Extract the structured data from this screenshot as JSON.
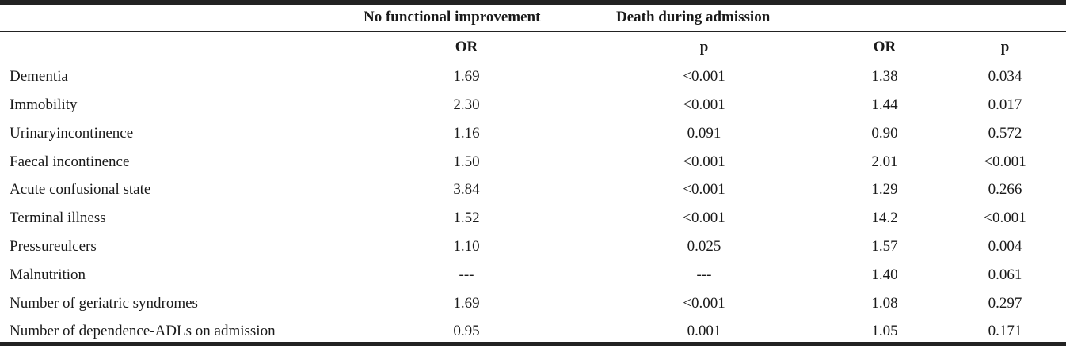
{
  "table": {
    "group_headers": [
      "No functional improvement",
      "Death during admission"
    ],
    "sub_headers": [
      "OR",
      "p",
      "OR",
      "p"
    ],
    "rows": [
      {
        "label": "Dementia",
        "or1": "1.69",
        "p1": "<0.001",
        "or2": "1.38",
        "p2": "0.034"
      },
      {
        "label": "Immobility",
        "or1": "2.30",
        "p1": "<0.001",
        "or2": "1.44",
        "p2": "0.017"
      },
      {
        "label": "Urinaryincontinence",
        "or1": "1.16",
        "p1": "0.091",
        "or2": "0.90",
        "p2": "0.572"
      },
      {
        "label": "Faecal incontinence",
        "or1": "1.50",
        "p1": "<0.001",
        "or2": "2.01",
        "p2": "<0.001"
      },
      {
        "label": "Acute confusional state",
        "or1": "3.84",
        "p1": "<0.001",
        "or2": "1.29",
        "p2": "0.266"
      },
      {
        "label": "Terminal illness",
        "or1": "1.52",
        "p1": "<0.001",
        "or2": "14.2",
        "p2": "<0.001"
      },
      {
        "label": "Pressureulcers",
        "or1": "1.10",
        "p1": "0.025",
        "or2": "1.57",
        "p2": "0.004"
      },
      {
        "label": "Malnutrition",
        "or1": "---",
        "p1": "---",
        "or2": "1.40",
        "p2": "0.061"
      },
      {
        "label": "Number of geriatric syndromes",
        "or1": "1.69",
        "p1": "<0.001",
        "or2": "1.08",
        "p2": "0.297"
      },
      {
        "label": "Number of dependence-ADLs on admission",
        "or1": "0.95",
        "p1": "0.001",
        "or2": "1.05",
        "p2": "0.171"
      }
    ]
  }
}
